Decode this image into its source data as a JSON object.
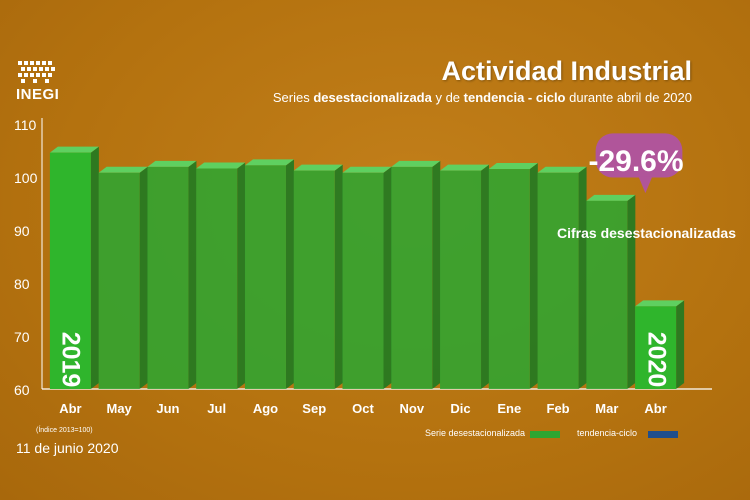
{
  "header": {
    "logo_text": "INEGI",
    "title": "Actividad Industrial",
    "subtitle_part1": "Series ",
    "subtitle_part2": "desestacionalizada",
    "subtitle_part3": " y de ",
    "subtitle_part4": "tendencia - ciclo",
    "subtitle_part5": " durante abril de 2020"
  },
  "callout": {
    "value": "-29.6%",
    "label": "Cifras desestacionalizadas",
    "color": "#b0559a"
  },
  "footer": {
    "index_note": "(Índice 2013=100)",
    "date": "11 de junio 2020"
  },
  "legend": {
    "items": [
      {
        "label": "Serie desestacionalizada",
        "color": "#2ea531"
      },
      {
        "label": "tendencia-ciclo",
        "color": "#1f4e8c"
      }
    ]
  },
  "year_labels": {
    "start": "2019",
    "end": "2020"
  },
  "chart_data": {
    "type": "bar",
    "title": "Actividad Industrial",
    "categories": [
      "Abr",
      "May",
      "Jun",
      "Jul",
      "Ago",
      "Sep",
      "Oct",
      "Nov",
      "Dic",
      "Ene",
      "Feb",
      "Mar",
      "Abr"
    ],
    "series": [
      {
        "name": "Serie desestacionalizada",
        "values": [
          104.6,
          100.8,
          101.9,
          101.6,
          102.2,
          101.2,
          100.8,
          101.9,
          101.2,
          101.5,
          100.8,
          95.5,
          75.6
        ]
      }
    ],
    "yticks": [
      60,
      70,
      80,
      90,
      100,
      110
    ],
    "ylim": [
      60,
      110
    ],
    "bar_color": "#2ea531",
    "highlight_color": "#2fb52c",
    "trend_color": "#1f4e8c"
  }
}
